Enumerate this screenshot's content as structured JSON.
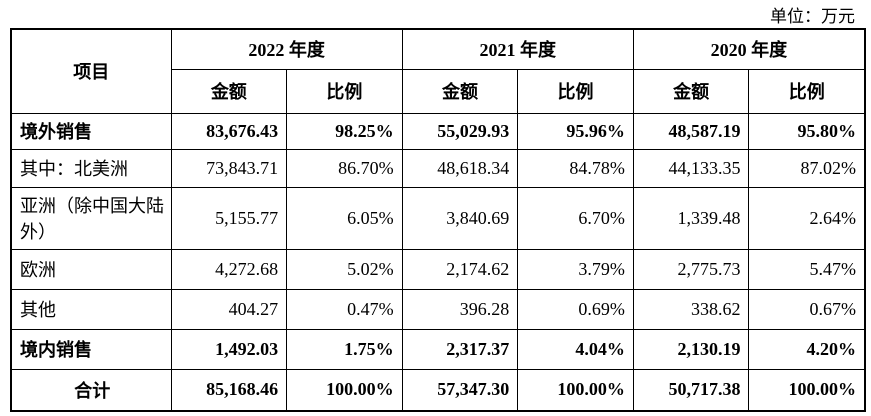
{
  "unit": "单位：万元",
  "header": {
    "item": "项目",
    "years": [
      "2022 年度",
      "2021 年度",
      "2020 年度"
    ],
    "subheaders": [
      "金额",
      "比例",
      "金额",
      "比例",
      "金额",
      "比例"
    ]
  },
  "table": {
    "rows": [
      {
        "label": "境外销售",
        "bold": true,
        "cells": [
          "83,676.43",
          "98.25%",
          "55,029.93",
          "95.96%",
          "48,587.19",
          "95.80%"
        ]
      },
      {
        "label": "其中：北美洲",
        "bold": false,
        "cells": [
          "73,843.71",
          "86.70%",
          "48,618.34",
          "84.78%",
          "44,133.35",
          "87.02%"
        ]
      },
      {
        "label": "亚洲（除中国大陆外）",
        "bold": false,
        "cells": [
          "5,155.77",
          "6.05%",
          "3,840.69",
          "6.70%",
          "1,339.48",
          "2.64%"
        ]
      },
      {
        "label": "欧洲",
        "bold": false,
        "cells": [
          "4,272.68",
          "5.02%",
          "2,174.62",
          "3.79%",
          "2,775.73",
          "5.47%"
        ]
      },
      {
        "label": "其他",
        "bold": false,
        "cells": [
          "404.27",
          "0.47%",
          "396.28",
          "0.69%",
          "338.62",
          "0.67%"
        ]
      },
      {
        "label": "境内销售",
        "bold": true,
        "cells": [
          "1,492.03",
          "1.75%",
          "2,317.37",
          "4.04%",
          "2,130.19",
          "4.20%"
        ]
      },
      {
        "label": "合计",
        "bold": true,
        "center": true,
        "cells": [
          "85,168.46",
          "100.00%",
          "57,347.30",
          "100.00%",
          "50,717.38",
          "100.00%"
        ]
      }
    ]
  }
}
